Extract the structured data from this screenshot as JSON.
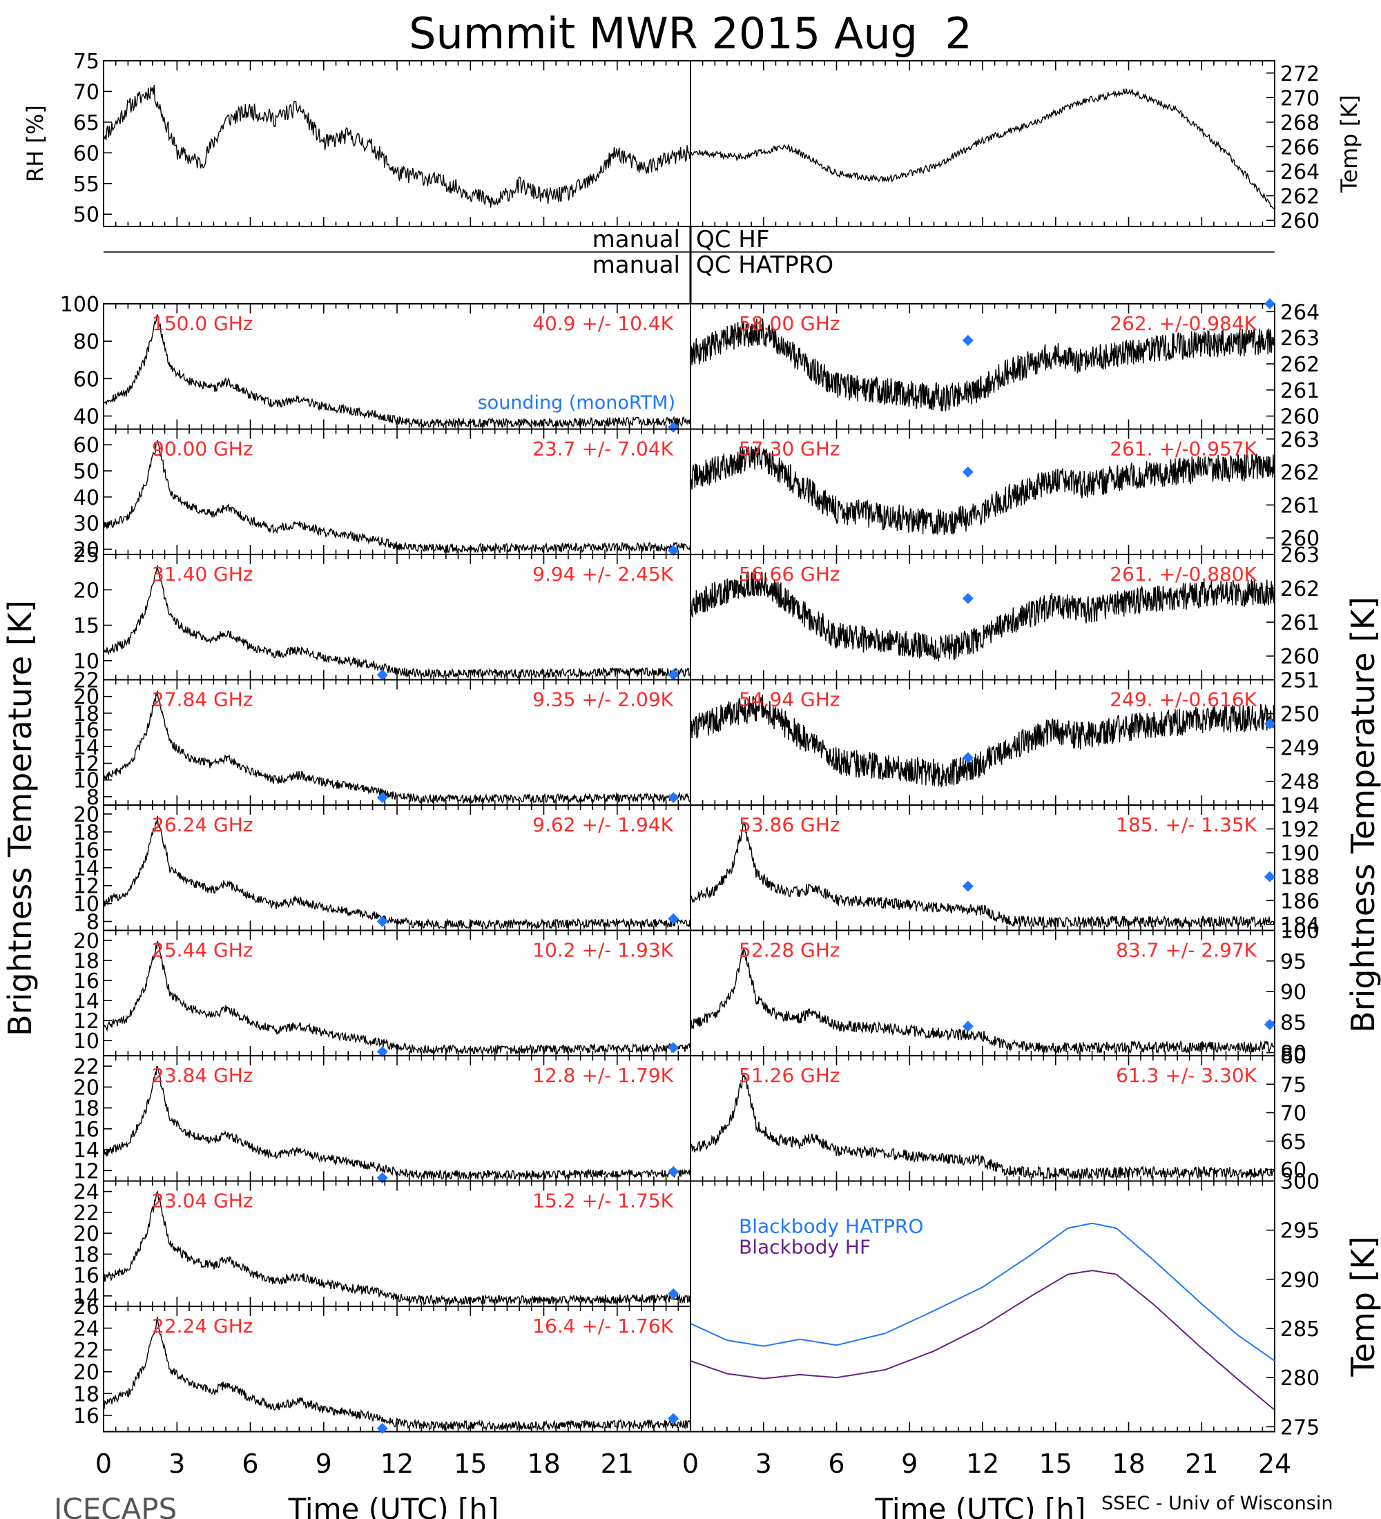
{
  "title": "Summit MWR 2015 Aug  2",
  "footer_left": "ICECAPS",
  "footer_right": "SSEC - Univ of Wisconsin",
  "colors": {
    "trace": "#000000",
    "label": "#ff2a2a",
    "sounding": "#1f77ff",
    "hatpro_bb": "#1f77ff",
    "hf_bb": "#6a1f8a"
  },
  "top_panels": {
    "left": {
      "ylabel": "RH [%]",
      "ylim": [
        48,
        75
      ],
      "yticks": [
        75,
        70,
        65,
        60,
        55,
        50
      ]
    },
    "right": {
      "ylabel": "Temp [K]",
      "ylim": [
        259.5,
        273
      ],
      "yticks": [
        272,
        270,
        268,
        266,
        264,
        262,
        260
      ]
    }
  },
  "qc": {
    "row1_left": "manual",
    "row1_right": "QC HF",
    "row2_left": "manual",
    "row2_right": "QC HATPRO"
  },
  "axes": {
    "ylabel": "Brightness Temperature [K]",
    "xlabel": "Time (UTC) [h]",
    "left_xticks": [
      "0",
      "3",
      "6",
      "9",
      "12",
      "15",
      "18",
      "21"
    ],
    "right_xticks": [
      "0",
      "3",
      "6",
      "9",
      "12",
      "15",
      "18",
      "21",
      "24"
    ],
    "bb_ylabel": "Temp [K]"
  },
  "legend": {
    "sounding": "sounding (monoRTM)",
    "hatpro": "Blackbody HATPRO",
    "hf": "Blackbody HF"
  },
  "chart_data": {
    "type": "line",
    "x_range_hours": [
      0,
      24
    ],
    "left_channels": [
      {
        "freq": "150.0 GHz",
        "stat": "40.9 +/-  10.4K",
        "ylim": [
          33,
          100
        ],
        "yticks": [
          100,
          80,
          60,
          40
        ],
        "sounding": [
          [
            23.3,
            34
          ]
        ]
      },
      {
        "freq": "90.00 GHz",
        "stat": "23.7 +/-  7.04K",
        "ylim": [
          18,
          66
        ],
        "yticks": [
          60,
          50,
          40,
          30,
          20
        ],
        "sounding": [
          [
            23.3,
            19.5
          ]
        ]
      },
      {
        "freq": "31.40 GHz",
        "stat": "9.94 +/- 2.45K",
        "ylim": [
          7.3,
          25
        ],
        "yticks": [
          25,
          20,
          15,
          10
        ],
        "sounding": [
          [
            11.4,
            8.0
          ],
          [
            23.3,
            8.0
          ]
        ]
      },
      {
        "freq": "27.84 GHz",
        "stat": "9.35 +/- 2.09K",
        "ylim": [
          7,
          22
        ],
        "yticks": [
          22,
          20,
          18,
          16,
          14,
          12,
          10,
          8
        ],
        "sounding": [
          [
            11.4,
            7.9
          ],
          [
            23.3,
            7.9
          ]
        ]
      },
      {
        "freq": "26.24 GHz",
        "stat": "9.62 +/- 1.94K",
        "ylim": [
          7,
          21
        ],
        "yticks": [
          20,
          18,
          16,
          14,
          12,
          10,
          8
        ],
        "sounding": [
          [
            11.4,
            8.0
          ],
          [
            23.3,
            8.3
          ]
        ]
      },
      {
        "freq": "25.44 GHz",
        "stat": "10.2 +/- 1.93K",
        "ylim": [
          8.5,
          21
        ],
        "yticks": [
          20,
          18,
          16,
          14,
          12,
          10
        ],
        "sounding": [
          [
            11.4,
            8.9
          ],
          [
            23.3,
            9.3
          ]
        ]
      },
      {
        "freq": "23.84 GHz",
        "stat": "12.8 +/- 1.79K",
        "ylim": [
          11,
          23
        ],
        "yticks": [
          22,
          20,
          18,
          16,
          14,
          12
        ],
        "sounding": [
          [
            11.4,
            11.3
          ],
          [
            23.3,
            11.9
          ]
        ]
      },
      {
        "freq": "23.04 GHz",
        "stat": "15.2 +/- 1.75K",
        "ylim": [
          13,
          25
        ],
        "yticks": [
          24,
          22,
          20,
          18,
          16,
          14
        ],
        "sounding": [
          [
            23.3,
            14.2
          ]
        ]
      },
      {
        "freq": "22.24 GHz",
        "stat": "16.4 +/- 1.76K",
        "ylim": [
          14.5,
          26
        ],
        "yticks": [
          26,
          24,
          22,
          20,
          18,
          16
        ],
        "sounding": [
          [
            11.4,
            14.8
          ],
          [
            23.3,
            15.7
          ]
        ]
      }
    ],
    "right_channels": [
      {
        "freq": "58.00 GHz",
        "stat": "262. +/-0.984K",
        "ylim": [
          259.5,
          264.3
        ],
        "yticks": [
          264,
          263,
          262,
          261,
          260
        ],
        "sounding": [
          [
            11.4,
            262.9
          ],
          [
            23.8,
            264.3
          ]
        ]
      },
      {
        "freq": "57.30 GHz",
        "stat": "261. +/-0.957K",
        "ylim": [
          259.5,
          263.3
        ],
        "yticks": [
          263,
          262,
          261,
          260
        ],
        "sounding": [
          [
            11.4,
            262.0
          ]
        ]
      },
      {
        "freq": "56.66 GHz",
        "stat": "261. +/-0.880K",
        "ylim": [
          259.3,
          263
        ],
        "yticks": [
          263,
          262,
          261,
          260
        ],
        "sounding": [
          [
            11.4,
            261.7
          ]
        ]
      },
      {
        "freq": "54.94 GHz",
        "stat": "249. +/-0.616K",
        "ylim": [
          247.3,
          251
        ],
        "yticks": [
          251,
          250,
          249,
          248
        ],
        "sounding": [
          [
            11.4,
            248.7
          ],
          [
            23.8,
            249.7
          ]
        ]
      },
      {
        "freq": "53.86 GHz",
        "stat": "185. +/- 1.35K",
        "ylim": [
          183.5,
          194
        ],
        "yticks": [
          194,
          192,
          190,
          188,
          186,
          184
        ],
        "sounding": [
          [
            11.4,
            187.2
          ],
          [
            23.8,
            188.0
          ]
        ]
      },
      {
        "freq": "52.28 GHz",
        "stat": "83.7 +/- 2.97K",
        "ylim": [
          79.5,
          100
        ],
        "yticks": [
          100,
          95,
          90,
          85,
          80
        ],
        "sounding": [
          [
            11.4,
            84.3
          ],
          [
            23.8,
            84.6
          ]
        ]
      },
      {
        "freq": "51.26 GHz",
        "stat": "61.3 +/- 3.30K",
        "ylim": [
          58,
          80
        ],
        "yticks": [
          80,
          75,
          70,
          65,
          60
        ],
        "sounding": []
      }
    ],
    "blackbody": {
      "ylim": [
        274.5,
        300
      ],
      "yticks": [
        300,
        295,
        290,
        285,
        280,
        275
      ],
      "x": [
        0,
        1.5,
        3,
        4.5,
        6,
        8,
        10,
        12,
        14,
        15.5,
        16.5,
        17.5,
        19,
        21,
        22.5,
        24
      ],
      "hatpro": [
        285.5,
        283.8,
        283.2,
        283.9,
        283.3,
        284.5,
        286.8,
        289.2,
        292.5,
        295.2,
        295.7,
        295.2,
        292.0,
        287.5,
        284.3,
        281.7
      ],
      "hf": [
        281.7,
        280.4,
        279.9,
        280.3,
        280.0,
        280.8,
        282.7,
        285.2,
        288.3,
        290.5,
        290.9,
        290.5,
        287.5,
        283.0,
        279.8,
        276.7
      ]
    }
  }
}
